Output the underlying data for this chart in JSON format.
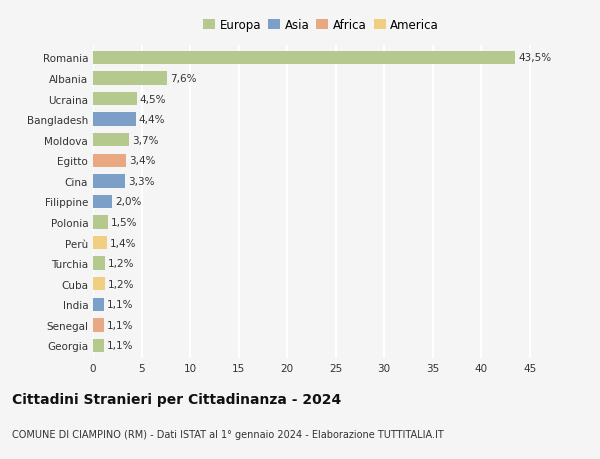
{
  "countries": [
    "Romania",
    "Albania",
    "Ucraina",
    "Bangladesh",
    "Moldova",
    "Egitto",
    "Cina",
    "Filippine",
    "Polonia",
    "Perù",
    "Turchia",
    "Cuba",
    "India",
    "Senegal",
    "Georgia"
  ],
  "values": [
    43.5,
    7.6,
    4.5,
    4.4,
    3.7,
    3.4,
    3.3,
    2.0,
    1.5,
    1.4,
    1.2,
    1.2,
    1.1,
    1.1,
    1.1
  ],
  "labels": [
    "43,5%",
    "7,6%",
    "4,5%",
    "4,4%",
    "3,7%",
    "3,4%",
    "3,3%",
    "2,0%",
    "1,5%",
    "1,4%",
    "1,2%",
    "1,2%",
    "1,1%",
    "1,1%",
    "1,1%"
  ],
  "continents": [
    "Europa",
    "Europa",
    "Europa",
    "Asia",
    "Europa",
    "Africa",
    "Asia",
    "Asia",
    "Europa",
    "America",
    "Europa",
    "America",
    "Asia",
    "Africa",
    "Europa"
  ],
  "continent_colors": {
    "Europa": "#b5c98e",
    "Asia": "#7b9fc7",
    "Africa": "#e8a882",
    "America": "#f0d080"
  },
  "legend_order": [
    "Europa",
    "Asia",
    "Africa",
    "America"
  ],
  "title": "Cittadini Stranieri per Cittadinanza - 2024",
  "subtitle": "COMUNE DI CIAMPINO (RM) - Dati ISTAT al 1° gennaio 2024 - Elaborazione TUTTITALIA.IT",
  "xlim": [
    0,
    47
  ],
  "xticks": [
    0,
    5,
    10,
    15,
    20,
    25,
    30,
    35,
    40,
    45
  ],
  "background_color": "#f5f5f5",
  "grid_color": "#ffffff",
  "bar_height": 0.65,
  "label_fontsize": 7.5,
  "tick_fontsize": 7.5,
  "title_fontsize": 10,
  "subtitle_fontsize": 7
}
